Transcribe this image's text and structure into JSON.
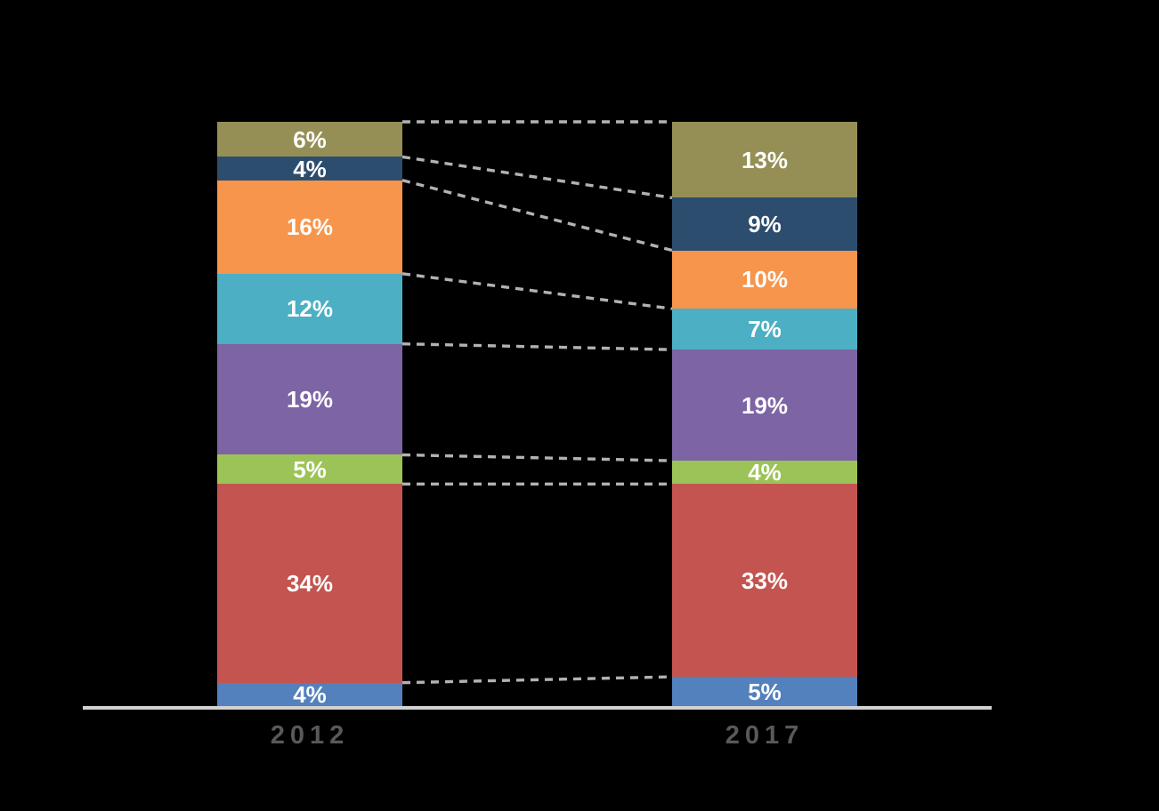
{
  "canvas": {
    "background": "#000000"
  },
  "chart_data": {
    "type": "bar",
    "subtype": "100-percent-stacked-column-comparison-with-connectors",
    "title": "",
    "categories": [
      "2012",
      "2017"
    ],
    "unit": "%",
    "ylim": [
      0,
      100
    ],
    "grid": false,
    "legend": "none",
    "stack_order": "bottom-to-top",
    "series": [
      {
        "name": "blue-segment",
        "color": "#5281bd",
        "values": [
          4,
          5
        ],
        "labels": [
          "4%",
          "5%"
        ]
      },
      {
        "name": "red-segment",
        "color": "#c4544f",
        "values": [
          34,
          33
        ],
        "labels": [
          "34%",
          "33%"
        ]
      },
      {
        "name": "green-segment",
        "color": "#9cc357",
        "values": [
          5,
          4
        ],
        "labels": [
          "5%",
          "4%"
        ]
      },
      {
        "name": "purple-segment",
        "color": "#7c64a5",
        "values": [
          19,
          19
        ],
        "labels": [
          "19%",
          "19%"
        ]
      },
      {
        "name": "teal-segment",
        "color": "#4cafc4",
        "values": [
          12,
          7
        ],
        "labels": [
          "12%",
          "7%"
        ]
      },
      {
        "name": "orange-segment",
        "color": "#f6954b",
        "values": [
          16,
          10
        ],
        "labels": [
          "16%",
          "10%"
        ]
      },
      {
        "name": "navy-segment",
        "color": "#2d4d6e",
        "values": [
          4,
          9
        ],
        "labels": [
          "4%",
          "9%"
        ]
      },
      {
        "name": "olive-segment",
        "color": "#968f55",
        "values": [
          6,
          13
        ],
        "labels": [
          "6%",
          "13%"
        ]
      }
    ],
    "styles": {
      "value_label_color": "#ffffff",
      "category_label_color": "#58595b",
      "axis_line_color": "#d2d2d4",
      "connector_line_color": "#b2b2b2"
    }
  }
}
